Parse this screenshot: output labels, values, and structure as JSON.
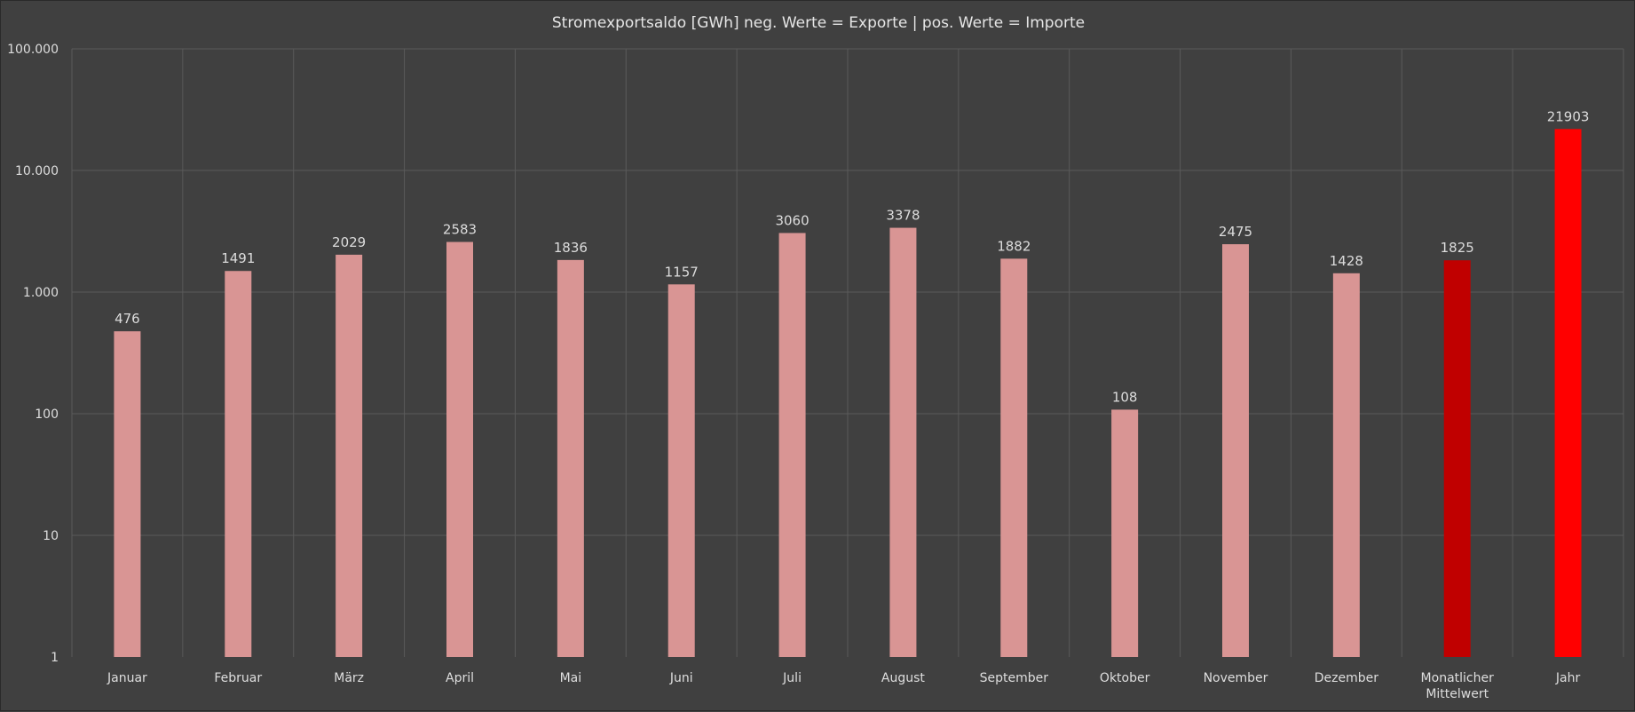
{
  "chart_data": {
    "type": "bar",
    "title": "Stromexportsaldo  [GWh] neg. Werte = Exporte | pos. Werte = Importe",
    "xlabel": "",
    "ylabel": "",
    "yscale": "log",
    "ylim": [
      1,
      100000
    ],
    "yticks": [
      1,
      10,
      100,
      1000,
      10000,
      100000
    ],
    "ytick_labels": [
      "1",
      "10",
      "100",
      "1.000",
      "10.000",
      "100.000"
    ],
    "grid": true,
    "categories": [
      "Januar",
      "Februar",
      "März",
      "April",
      "Mai",
      "Juni",
      "Juli",
      "August",
      "September",
      "Oktober",
      "November",
      "Dezember",
      "Monatlicher Mittelwert",
      "Jahr"
    ],
    "values": [
      476,
      1491,
      2029,
      2583,
      1836,
      1157,
      3060,
      3378,
      1882,
      108,
      2475,
      1428,
      1825,
      21903
    ],
    "colors": [
      "#d99594",
      "#d99594",
      "#d99594",
      "#d99594",
      "#d99594",
      "#d99594",
      "#d99594",
      "#d99594",
      "#d99594",
      "#d99594",
      "#d99594",
      "#d99594",
      "#c00000",
      "#ff0000"
    ],
    "background": "#404040",
    "legend": "none"
  }
}
